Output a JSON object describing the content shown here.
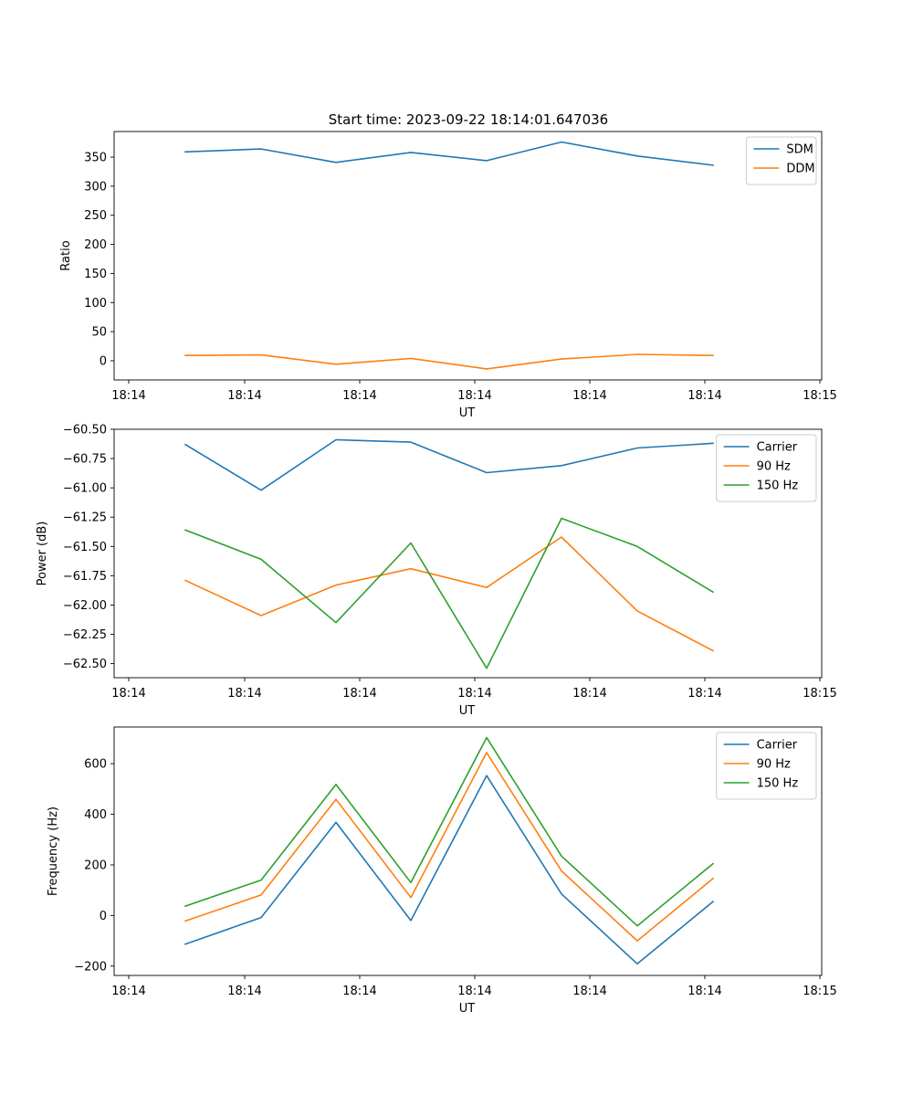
{
  "figure": {
    "title": "Start time: 2023-09-22 18:14:01.647036"
  },
  "chart_data": [
    {
      "type": "line",
      "xlabel": "UT",
      "ylabel": "Ratio",
      "x_tick_labels": [
        "18:14",
        "18:14",
        "18:14",
        "18:14",
        "18:14",
        "18:14",
        "18:14"
      ],
      "x_last_tick_label": "18:15",
      "ylim": [
        -33,
        394
      ],
      "y_ticks": [
        0,
        50,
        100,
        150,
        200,
        250,
        300,
        350
      ],
      "y_tick_labels": [
        "0",
        "50",
        "100",
        "150",
        "200",
        "250",
        "300",
        "350"
      ],
      "legend": "top-right",
      "series": [
        {
          "name": "SDM",
          "color": "#1f77b4",
          "values": [
            359,
            364,
            341,
            358,
            344,
            376,
            352,
            336
          ]
        },
        {
          "name": "DDM",
          "color": "#ff7f0e",
          "values": [
            9,
            10,
            -6,
            4,
            -14,
            3,
            11,
            9
          ]
        }
      ]
    },
    {
      "type": "line",
      "xlabel": "UT",
      "ylabel": "Power (dB)",
      "x_tick_labels": [
        "18:14",
        "18:14",
        "18:14",
        "18:14",
        "18:14",
        "18:14",
        "18:14"
      ],
      "x_last_tick_label": "18:15",
      "ylim": [
        -62.62,
        -60.5
      ],
      "y_ticks": [
        -60.5,
        -60.75,
        -61.0,
        -61.25,
        -61.5,
        -61.75,
        -62.0,
        -62.25,
        -62.5
      ],
      "y_tick_labels": [
        "−60.50",
        "−60.75",
        "−61.00",
        "−61.25",
        "−61.50",
        "−61.75",
        "−62.00",
        "−62.25",
        "−62.50"
      ],
      "legend": "top-right",
      "series": [
        {
          "name": "Carrier",
          "color": "#1f77b4",
          "values": [
            -60.63,
            -61.02,
            -60.59,
            -60.61,
            -60.87,
            -60.81,
            -60.66,
            -60.62
          ]
        },
        {
          "name": "90 Hz",
          "color": "#ff7f0e",
          "values": [
            -61.79,
            -62.09,
            -61.83,
            -61.69,
            -61.85,
            -61.42,
            -62.05,
            -62.39
          ]
        },
        {
          "name": "150 Hz",
          "color": "#2ca02c",
          "values": [
            -61.36,
            -61.61,
            -62.15,
            -61.47,
            -62.54,
            -61.26,
            -61.5,
            -61.89
          ]
        }
      ]
    },
    {
      "type": "line",
      "xlabel": "UT",
      "ylabel": "Frequency (Hz)",
      "x_tick_labels": [
        "18:14",
        "18:14",
        "18:14",
        "18:14",
        "18:14",
        "18:14",
        "18:14"
      ],
      "x_last_tick_label": "18:15",
      "ylim": [
        -237,
        745
      ],
      "y_ticks": [
        -200,
        0,
        200,
        400,
        600
      ],
      "y_tick_labels": [
        "−200",
        "0",
        "200",
        "400",
        "600"
      ],
      "legend": "top-right",
      "series": [
        {
          "name": "Carrier",
          "color": "#1f77b4",
          "values": [
            -113,
            -8,
            368,
            -20,
            553,
            85,
            -191,
            55
          ]
        },
        {
          "name": "90 Hz",
          "color": "#ff7f0e",
          "values": [
            -22,
            81,
            459,
            71,
            644,
            176,
            -100,
            146
          ]
        },
        {
          "name": "150 Hz",
          "color": "#2ca02c",
          "values": [
            37,
            140,
            518,
            130,
            703,
            235,
            -41,
            205
          ]
        }
      ]
    }
  ]
}
